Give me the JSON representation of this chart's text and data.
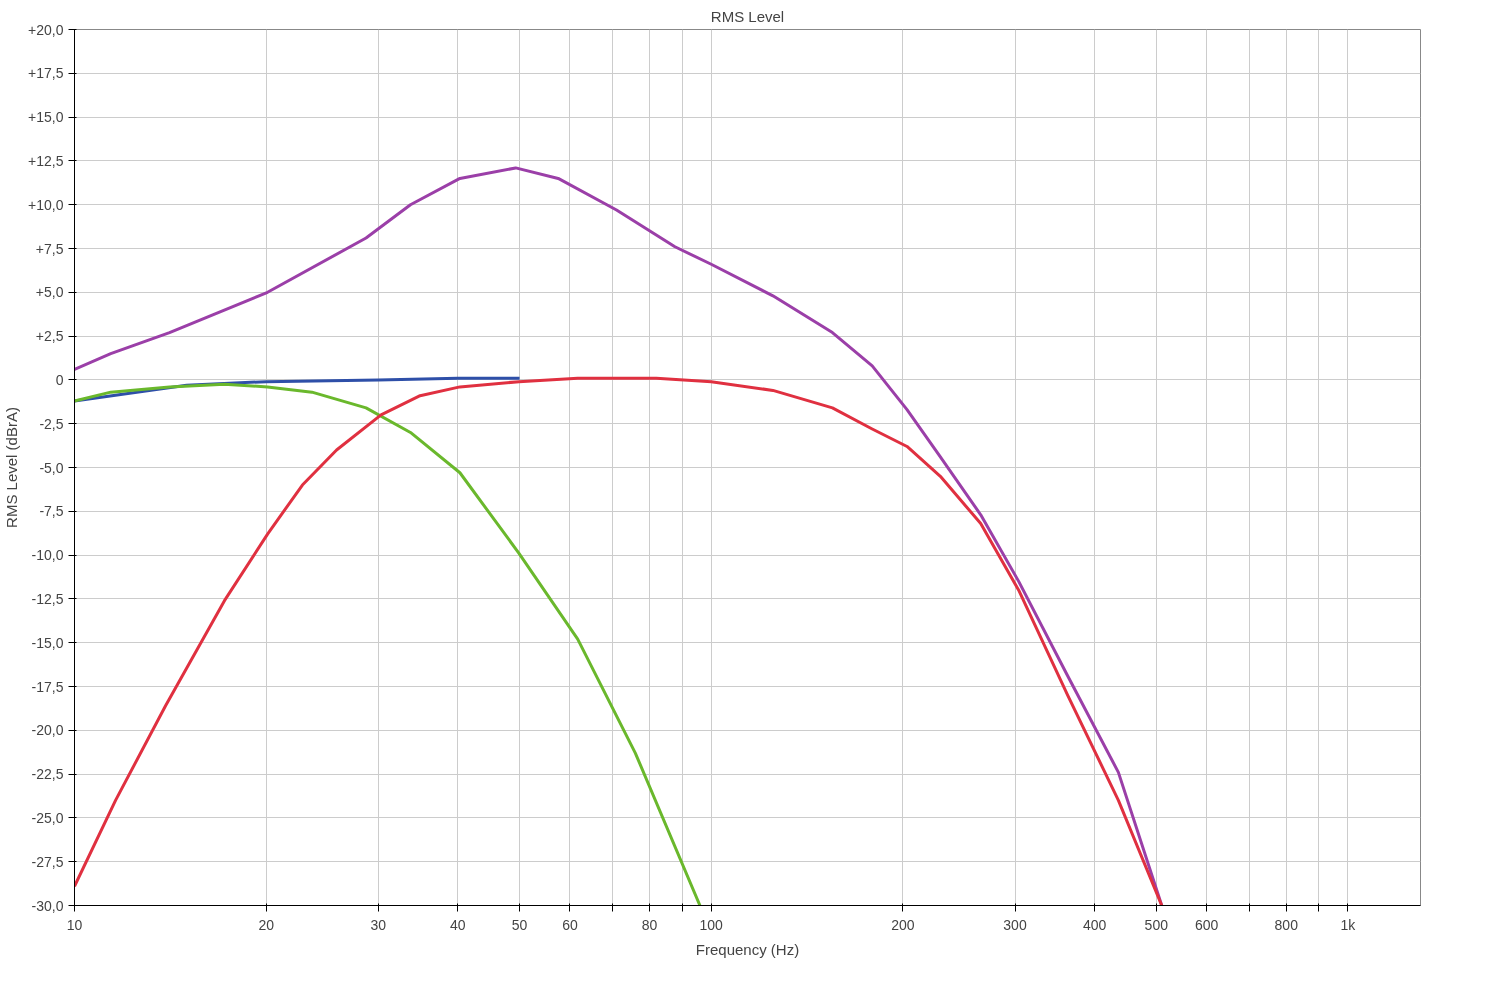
{
  "chart_data": {
    "type": "line",
    "title": "RMS Level",
    "xlabel": "Frequency (Hz)",
    "ylabel": "RMS Level (dBrA)",
    "log": "x",
    "grid": true,
    "marker": "none",
    "line_style": "solid",
    "xlim": [
      10,
      1300
    ],
    "ylim": [
      -30,
      20
    ],
    "xticks": [
      10,
      20,
      30,
      40,
      50,
      60,
      {
        "value": 70,
        "label": null
      },
      80,
      {
        "value": 90,
        "label": null
      },
      100,
      200,
      300,
      400,
      500,
      600,
      {
        "value": 700,
        "label": null
      },
      800,
      {
        "value": 900,
        "label": null
      },
      {
        "value": 1000,
        "label": "1k"
      }
    ],
    "yticks": [
      {
        "value": 20,
        "label": "+20,0"
      },
      {
        "value": 17.5,
        "label": "+17,5"
      },
      {
        "value": 15,
        "label": "+15,0"
      },
      {
        "value": 12.5,
        "label": "+12,5"
      },
      {
        "value": 10,
        "label": "+10,0"
      },
      {
        "value": 7.5,
        "label": "+7,5"
      },
      {
        "value": 5,
        "label": "+5,0"
      },
      {
        "value": 2.5,
        "label": "+2,5"
      },
      0,
      {
        "value": -2.5,
        "label": "-2,5"
      },
      {
        "value": -5,
        "label": "-5,0"
      },
      {
        "value": -7.5,
        "label": "-7,5"
      },
      {
        "value": -10,
        "label": "-10,0"
      },
      {
        "value": -12.5,
        "label": "-12,5"
      },
      {
        "value": -15,
        "label": "-15,0"
      },
      {
        "value": -17.5,
        "label": "-17,5"
      },
      {
        "value": -20,
        "label": "-20,0"
      },
      {
        "value": -22.5,
        "label": "-22,5"
      },
      {
        "value": -25,
        "label": "-25,0"
      },
      {
        "value": -27.5,
        "label": "-27,5"
      },
      {
        "value": -30,
        "label": "-30,0"
      }
    ],
    "series": [
      {
        "color": "#9b3fa8",
        "x": [
          10,
          11.4,
          14.1,
          20.1,
          28.7,
          33.7,
          40.3,
          49.3,
          57.5,
          71,
          87.7,
          100,
          125,
          155,
          179,
          203,
          229,
          265,
          304,
          363,
          436,
          510
        ],
        "values": [
          0.6,
          1.5,
          2.7,
          5.0,
          8.1,
          10.0,
          11.5,
          12.1,
          11.5,
          9.7,
          7.6,
          6.6,
          4.8,
          2.7,
          0.8,
          -1.7,
          -4.4,
          -7.7,
          -11.5,
          -16.9,
          -22.4,
          -30
        ]
      },
      {
        "color": "#2e4fa8",
        "x": [
          10,
          15,
          20,
          30,
          40,
          50
        ],
        "values": [
          -1.2,
          -0.3,
          -0.1,
          0,
          0.1,
          0.1
        ]
      },
      {
        "color": "#6ab82c",
        "x": [
          10,
          11.4,
          14.1,
          17.2,
          20.1,
          23.6,
          28.7,
          33.7,
          40.3,
          49.9,
          61.7,
          76,
          96
        ],
        "values": [
          -1.2,
          -0.7,
          -0.4,
          -0.25,
          -0.4,
          -0.7,
          -1.6,
          -3.0,
          -5.3,
          -9.9,
          -14.8,
          -21.3,
          -30
        ]
      },
      {
        "color": "#e03040",
        "x": [
          10,
          11.6,
          13.9,
          17.2,
          20.1,
          22.8,
          25.8,
          30.3,
          34.9,
          40.3,
          49.9,
          61.7,
          82,
          100,
          125,
          155,
          179,
          203,
          229,
          265,
          304,
          363,
          436,
          510
        ],
        "values": [
          -28.9,
          -24,
          -18.6,
          -12.6,
          -8.8,
          -6.0,
          -4.0,
          -2.0,
          -0.9,
          -0.4,
          -0.1,
          0.1,
          0.1,
          -0.1,
          -0.6,
          -1.6,
          -2.8,
          -3.8,
          -5.5,
          -8.2,
          -12,
          -18,
          -24,
          -30
        ]
      }
    ]
  }
}
